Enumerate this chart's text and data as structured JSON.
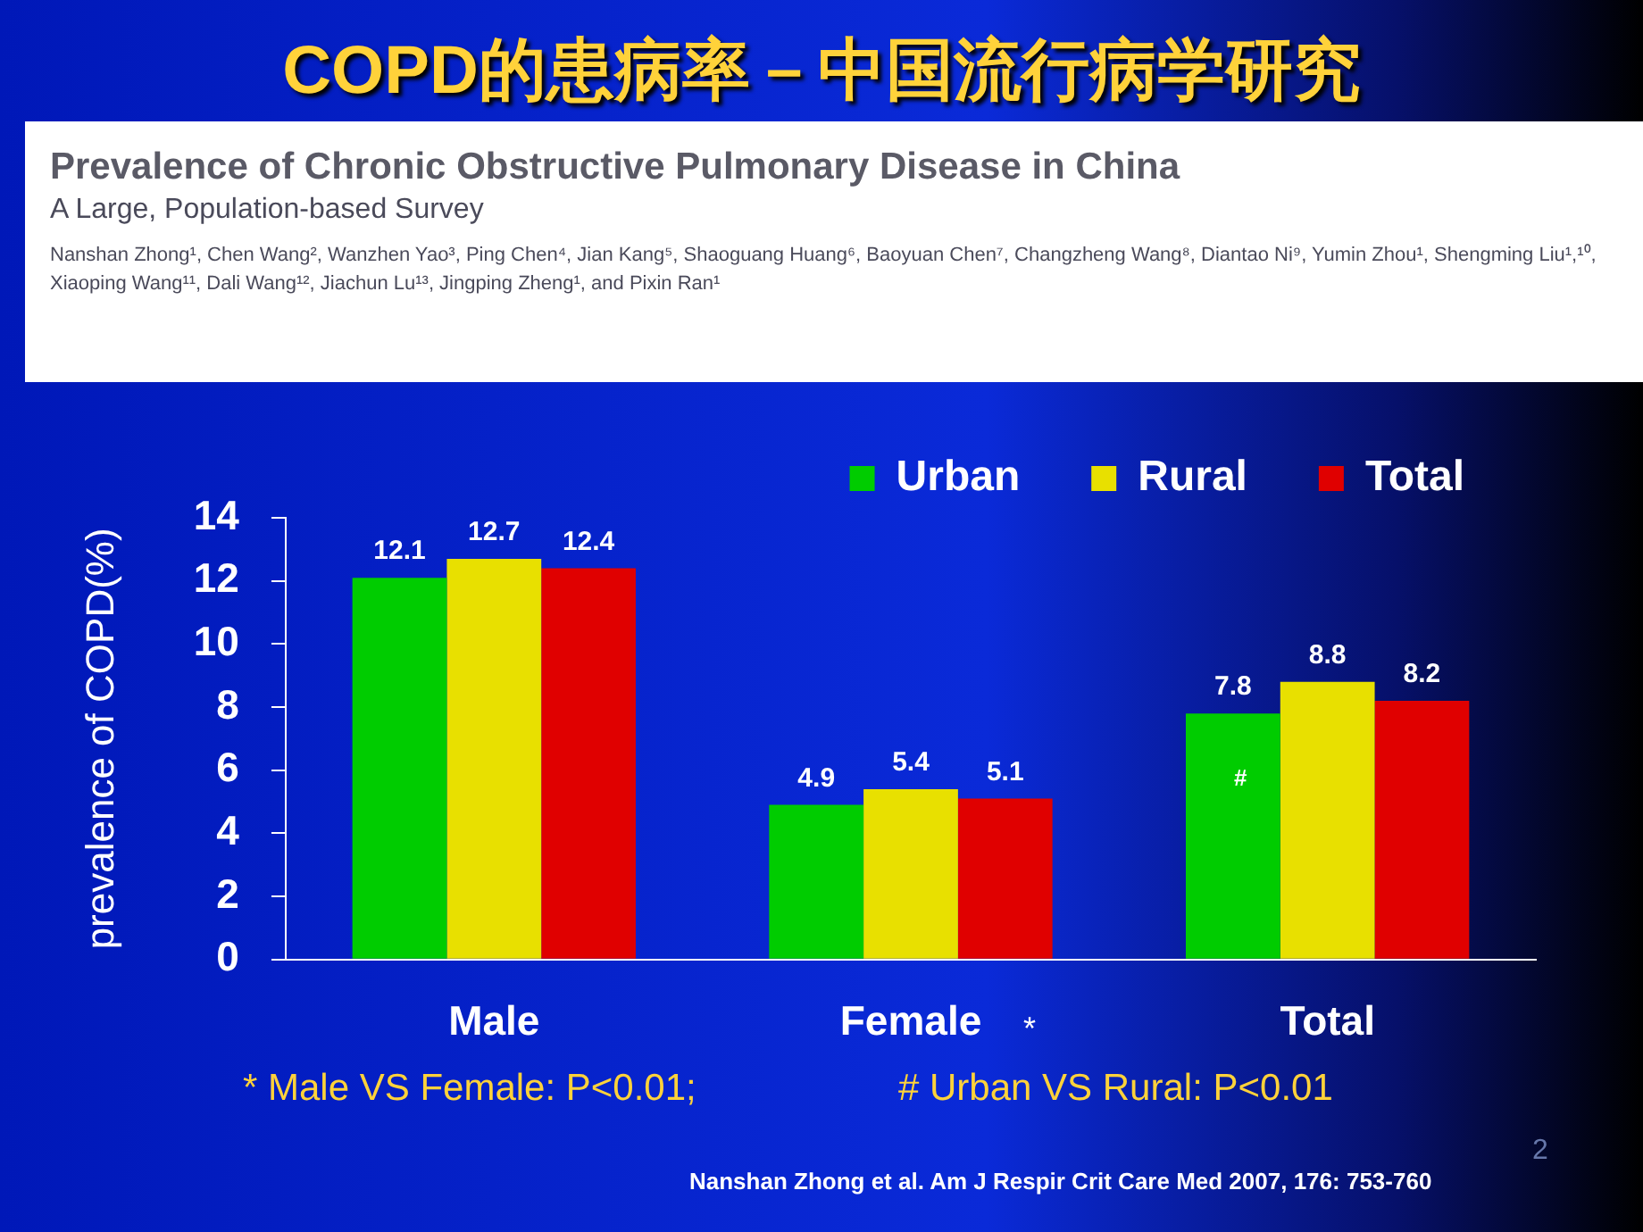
{
  "chart_data": {
    "type": "bar",
    "title": "COPD的患病率－中国流行病学研究",
    "subtitle": "Prevalence of Chronic Obstructive Pulmonary Disease in China",
    "ylabel": "prevalence of COPD(%)",
    "categories": [
      "Male",
      "Female",
      "Total"
    ],
    "series": [
      {
        "name": "Urban",
        "color": "#00cc00",
        "values": [
          12.1,
          4.9,
          7.8
        ]
      },
      {
        "name": "Rural",
        "color": "#e8e000",
        "values": [
          12.7,
          5.4,
          8.8
        ]
      },
      {
        "name": "Total",
        "color": "#e00000",
        "values": [
          12.4,
          5.1,
          8.2
        ]
      }
    ],
    "ylim": [
      0,
      14
    ],
    "yticks": [
      0,
      2,
      4,
      6,
      8,
      10,
      12,
      14
    ],
    "data_labels": true,
    "legend": "top right",
    "annotations": [
      "A Large, Population-based Survey",
      "Nanshan Zhong¹, Chen Wang², Wanzhen Yao³, Ping Chen⁴, Jian Kang⁵, Shaoguang Huang⁶, Baoyuan Chen⁷, Changzheng Wang⁸, Diantao Ni⁹, Yumin Zhou¹, Shengming Liu¹,¹⁰, Xiaoping Wang¹¹, Dali Wang¹², Jiachun Lu¹³, Jingping Zheng¹, and Pixin Ran¹",
      "#",
      "*",
      "* Male VS Female: P<0.01;",
      "# Urban VS Rural: P<0.01",
      "Nanshan Zhong et al.  Am J Respir Crit Care Med  2007, 176: 753-760",
      "2"
    ]
  }
}
